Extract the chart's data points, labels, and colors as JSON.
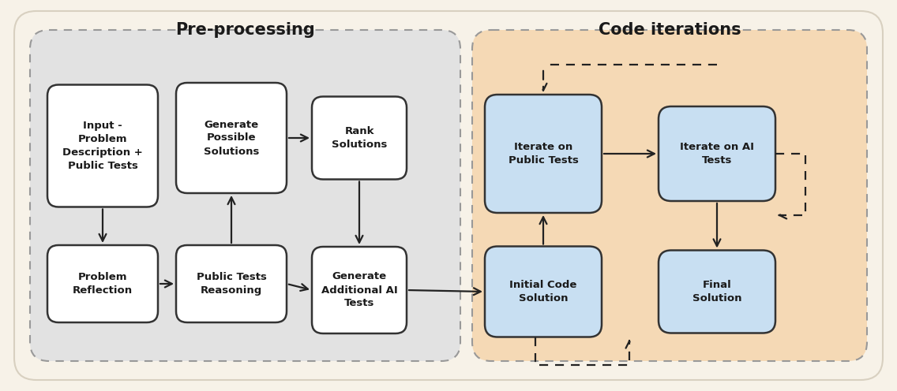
{
  "fig_bg": "#f7f2e8",
  "pre_bg": "#e2e2e2",
  "code_bg": "#f5d9b5",
  "pre_title": "Pre-processing",
  "code_title": "Code iterations",
  "box_texts": {
    "input": "Input -\nProblem\nDescription +\nPublic Tests",
    "gen_possible": "Generate\nPossible\nSolutions",
    "rank": "Rank\nSolutions",
    "problem_reflect": "Problem\nReflection",
    "pub_tests": "Public Tests\nReasoning",
    "gen_ai": "Generate\nAdditional AI\nTests",
    "iterate_pub": "Iterate on\nPublic Tests",
    "iterate_ai": "Iterate on AI\nTests",
    "initial_code": "Initial Code\nSolution",
    "final": "Final\nSolution"
  },
  "box_colors": {
    "input": "#ffffff",
    "gen_possible": "#ffffff",
    "rank": "#ffffff",
    "problem_reflect": "#ffffff",
    "pub_tests": "#ffffff",
    "gen_ai": "#ffffff",
    "iterate_pub": "#c8dff2",
    "iterate_ai": "#c8dff2",
    "initial_code": "#c8dff2",
    "final": "#c8dff2"
  }
}
